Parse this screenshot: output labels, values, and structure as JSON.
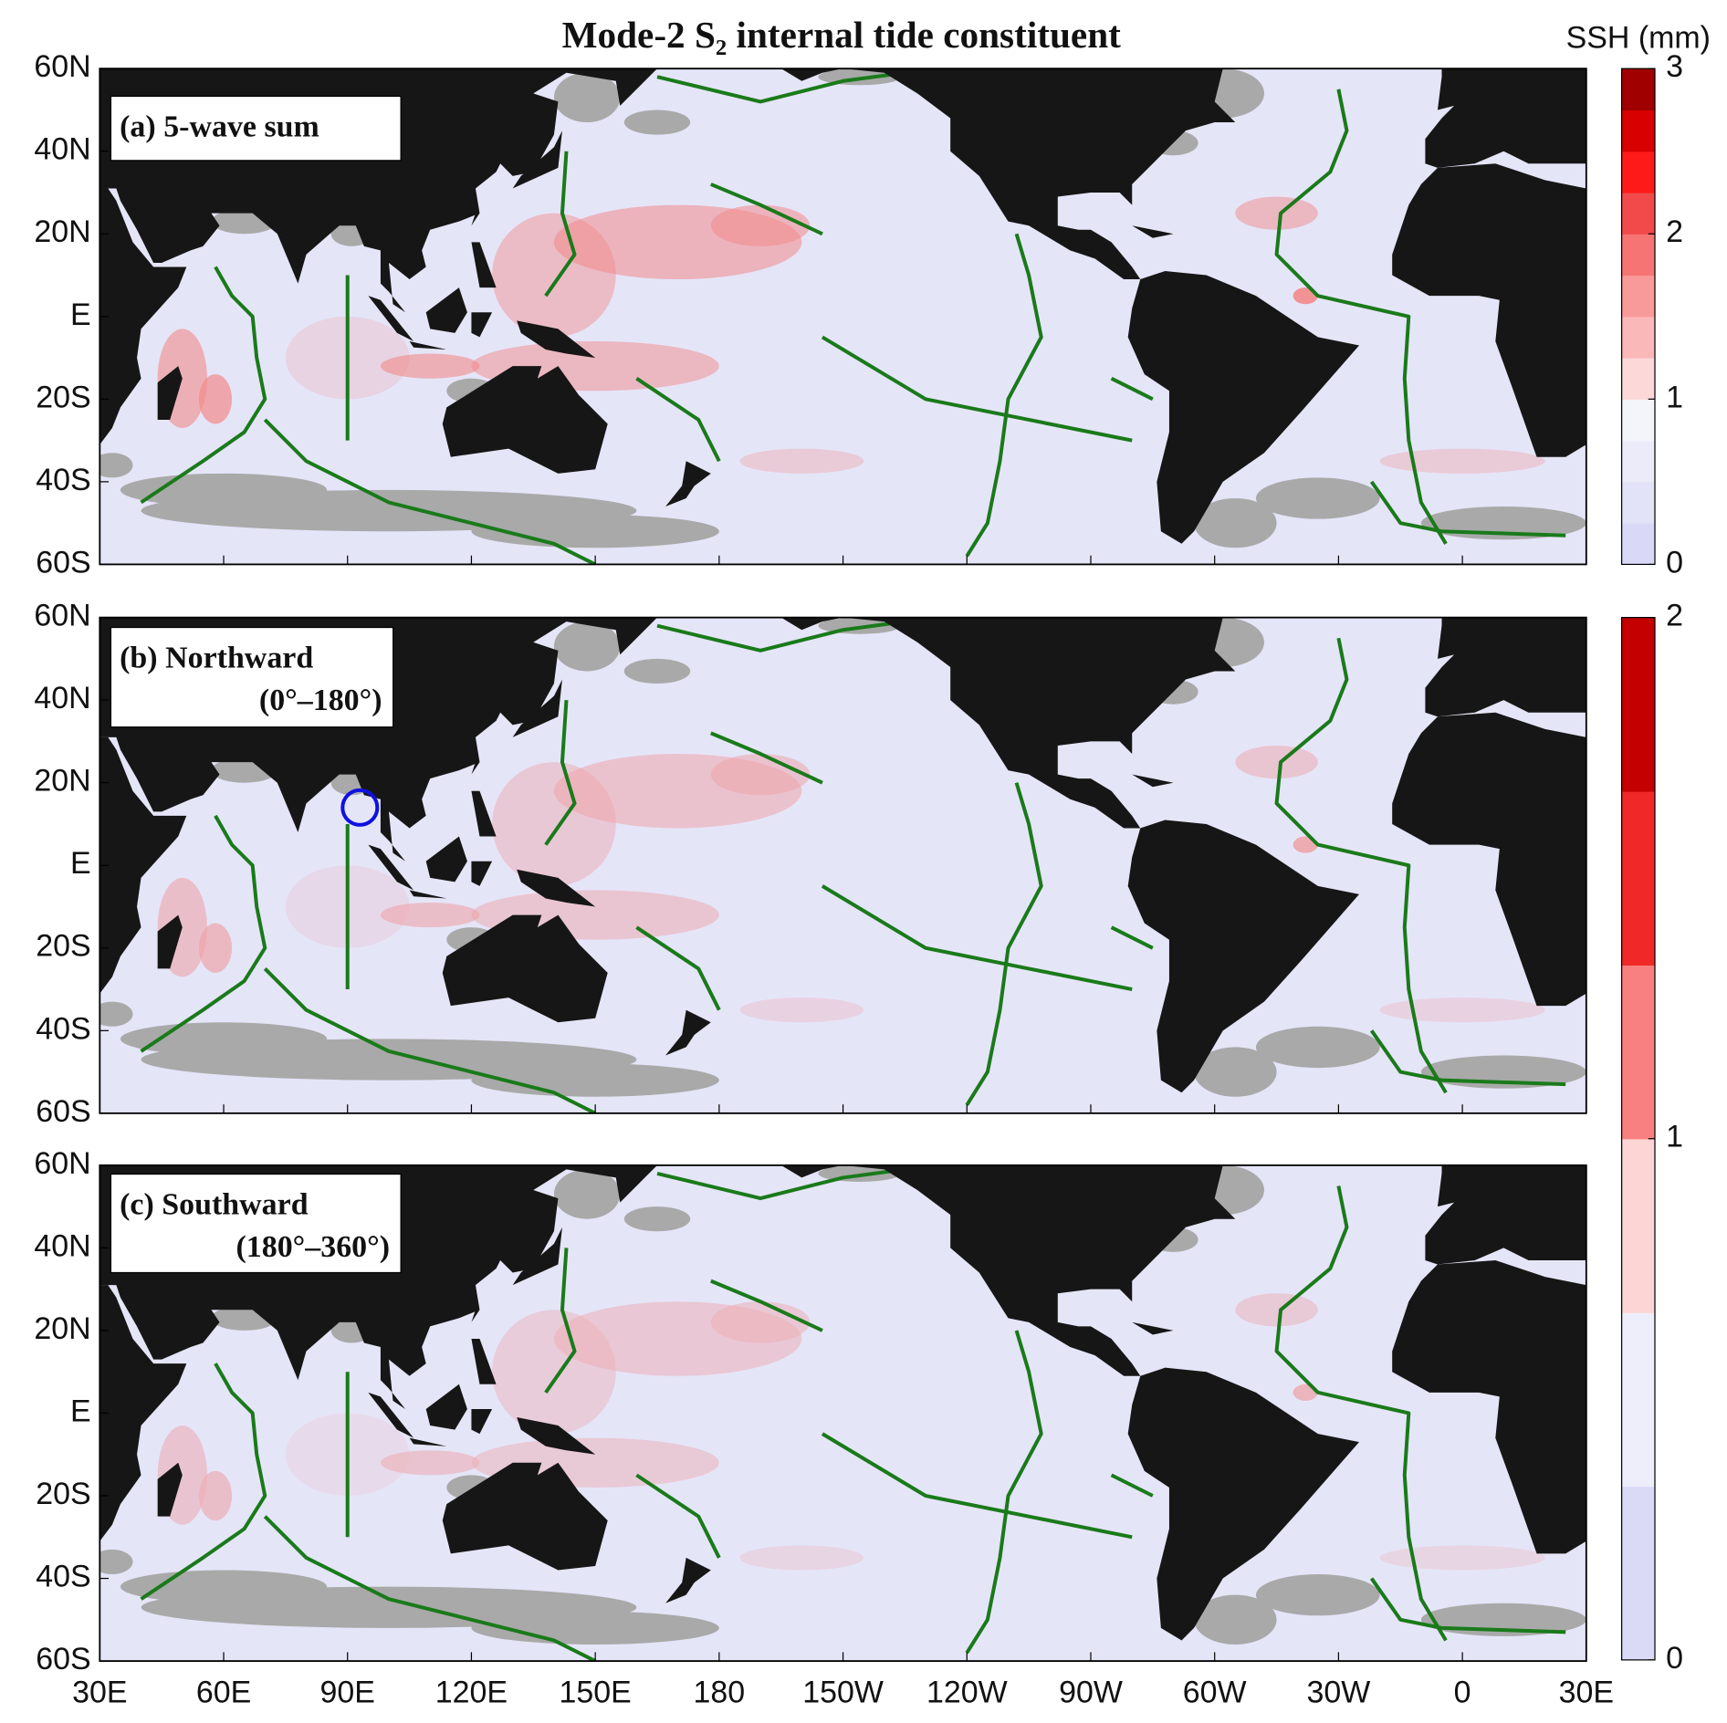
{
  "title": "Mode-2 S₂ internal tide constituent",
  "colorbar_label": "SSH (mm)",
  "panels": [
    {
      "label": "(a) 5-wave sum"
    },
    {
      "label": "(b) Northward",
      "sublabel": "(0°–180°)"
    },
    {
      "label": "(c) Southward",
      "sublabel": "(180°–360°)"
    }
  ],
  "xlim": [
    30,
    390
  ],
  "xticks": [
    {
      "value": 30,
      "label": "30E"
    },
    {
      "value": 60,
      "label": "60E"
    },
    {
      "value": 90,
      "label": "90E"
    },
    {
      "value": 120,
      "label": "120E"
    },
    {
      "value": 150,
      "label": "150E"
    },
    {
      "value": 180,
      "label": "180"
    },
    {
      "value": 210,
      "label": "150W"
    },
    {
      "value": 240,
      "label": "120W"
    },
    {
      "value": 270,
      "label": "90W"
    },
    {
      "value": 300,
      "label": "60W"
    },
    {
      "value": 330,
      "label": "30W"
    },
    {
      "value": 360,
      "label": "0"
    },
    {
      "value": 390,
      "label": "30E"
    }
  ],
  "ylim": [
    -60,
    60
  ],
  "yticks": [
    {
      "value": 60,
      "label": "60N"
    },
    {
      "value": 40,
      "label": "40N"
    },
    {
      "value": 20,
      "label": "20N"
    },
    {
      "value": 0,
      "label": "E"
    },
    {
      "value": -20,
      "label": "20S"
    },
    {
      "value": -40,
      "label": "40S"
    },
    {
      "value": -60,
      "label": "60S"
    }
  ],
  "colorbars": [
    {
      "clim": [
        0,
        3
      ],
      "ticks": [
        0,
        1,
        2,
        3
      ],
      "colors": [
        "#d9d9f7",
        "#e2e2f8",
        "#ebebf9",
        "#f4f4fb",
        "#fdd8d8",
        "#fbb8b8",
        "#f99a9a",
        "#f67474",
        "#f24a4a",
        "#ff1a1a",
        "#d80000",
        "#a00000"
      ]
    },
    {
      "clim": [
        0,
        2
      ],
      "ticks": [
        0,
        1,
        2
      ],
      "colors": [
        "#dadaf7",
        "#eeeefa",
        "#fdd5d5",
        "#f98080",
        "#f02828",
        "#c40000"
      ]
    }
  ]
}
